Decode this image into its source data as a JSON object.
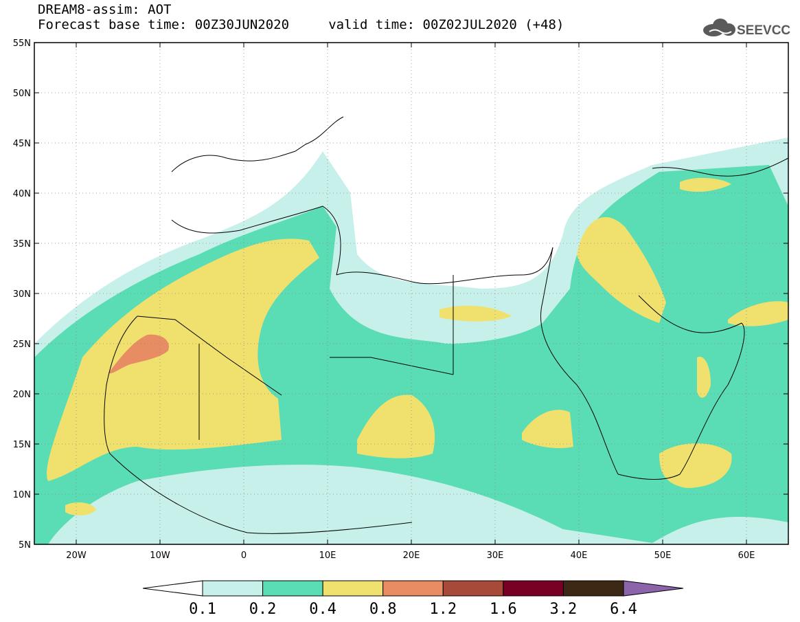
{
  "header": {
    "title": "DREAM8-assim: AOT",
    "subtitle": "Forecast base time: 00Z30JUN2020     valid time: 00Z02JUL2020 (+48)"
  },
  "logo": {
    "text": "SEEVCCC",
    "icon": "cloud-icon"
  },
  "map": {
    "lat_labels": [
      "55N",
      "50N",
      "45N",
      "40N",
      "35N",
      "30N",
      "25N",
      "20N",
      "15N",
      "10N",
      "5N"
    ],
    "lon_labels": [
      "20W",
      "10W",
      "0",
      "10E",
      "20E",
      "30E",
      "40E",
      "50E",
      "60E"
    ],
    "lat_range": [
      5,
      55
    ],
    "lon_range": [
      -25,
      65
    ],
    "grid": "dotted"
  },
  "colorbar": {
    "labels": [
      "0.1",
      "0.2",
      "0.4",
      "0.8",
      "1.2",
      "1.6",
      "3.2",
      "6.4"
    ],
    "colors": [
      "#ffffff",
      "#c8f0ea",
      "#5adcb4",
      "#f0e16e",
      "#e88c64",
      "#a84a3a",
      "#780024",
      "#3c2814",
      "#8c64aa"
    ]
  }
}
